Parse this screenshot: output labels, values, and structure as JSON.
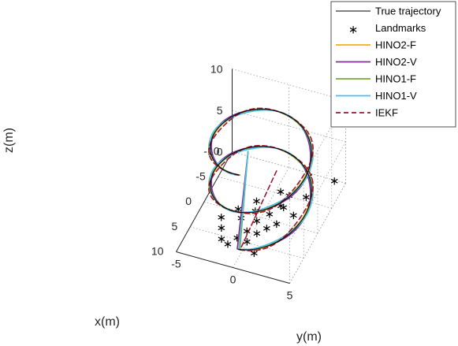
{
  "chart_data": {
    "type": "line3d",
    "title": "",
    "xlabel": "x(m)",
    "ylabel": "y(m)",
    "zlabel": "z(m)",
    "xlim": [
      -10,
      10
    ],
    "ylim": [
      -5,
      5
    ],
    "zlim": [
      0,
      10
    ],
    "x_ticks": [
      "-10",
      "-5",
      "0",
      "5",
      "10"
    ],
    "y_ticks": [
      "-5",
      "0",
      "5"
    ],
    "z_ticks": [
      "0",
      "5",
      "10"
    ],
    "grid": true,
    "legend_position": "top-right",
    "legend": [
      {
        "name": "True trajectory",
        "color": "#000000",
        "style": "solid"
      },
      {
        "name": "Landmarks",
        "color": "#000000",
        "style": "marker"
      },
      {
        "name": "HINO2-F",
        "color": "#EDB120",
        "style": "solid"
      },
      {
        "name": "HINO2-V",
        "color": "#7E2F8E",
        "style": "solid"
      },
      {
        "name": "HINO1-F",
        "color": "#77AC30",
        "style": "solid"
      },
      {
        "name": "HINO1-V",
        "color": "#4DBEEE",
        "style": "solid"
      },
      {
        "name": "IEKF",
        "color": "#A2142F",
        "style": "dashed"
      }
    ],
    "trajectory": {
      "description_param": "helix: x = 8 cos t, y = 4 sin t, z = 1 + 9 t / (4 pi), t in [0, 4 pi]",
      "radius_x": 8,
      "radius_y": 4,
      "z_start": 1,
      "z_end": 10
    },
    "landmarks": [
      [
        -9,
        2,
        0.5
      ],
      [
        -8,
        4.5,
        1.5
      ],
      [
        -6,
        2.5,
        0
      ],
      [
        -5,
        0.5,
        0.5
      ],
      [
        -4,
        1.5,
        1
      ],
      [
        -3,
        1,
        0.2
      ],
      [
        -2.5,
        -1,
        0.3
      ],
      [
        -2,
        1.5,
        0.8
      ],
      [
        -1.5,
        2.5,
        0.5
      ],
      [
        -1,
        0.5,
        0.2
      ],
      [
        0,
        -2,
        0.5
      ],
      [
        0,
        -0.5,
        0.8
      ],
      [
        0.5,
        1.5,
        0.3
      ],
      [
        1,
        -1.5,
        0.2
      ],
      [
        1.5,
        0,
        0.7
      ],
      [
        2,
        1,
        0.5
      ],
      [
        2,
        -3,
        0.3
      ],
      [
        3,
        -0.5,
        0.2
      ],
      [
        3.5,
        0.5,
        0.6
      ],
      [
        4,
        -2.5,
        0.4
      ],
      [
        4.5,
        -1,
        0.1
      ],
      [
        5,
        0,
        0.3
      ],
      [
        6,
        -2,
        0.5
      ],
      [
        6.5,
        1,
        0.2
      ],
      [
        7,
        -1.2,
        0.8
      ]
    ],
    "series": [
      {
        "name": "True trajectory",
        "color": "#000000"
      },
      {
        "name": "HINO2-F",
        "color": "#EDB120"
      },
      {
        "name": "HINO2-V",
        "color": "#7E2F8E"
      },
      {
        "name": "HINO1-F",
        "color": "#77AC30"
      },
      {
        "name": "HINO1-V",
        "color": "#4DBEEE"
      },
      {
        "name": "IEKF",
        "color": "#A2142F"
      }
    ]
  }
}
